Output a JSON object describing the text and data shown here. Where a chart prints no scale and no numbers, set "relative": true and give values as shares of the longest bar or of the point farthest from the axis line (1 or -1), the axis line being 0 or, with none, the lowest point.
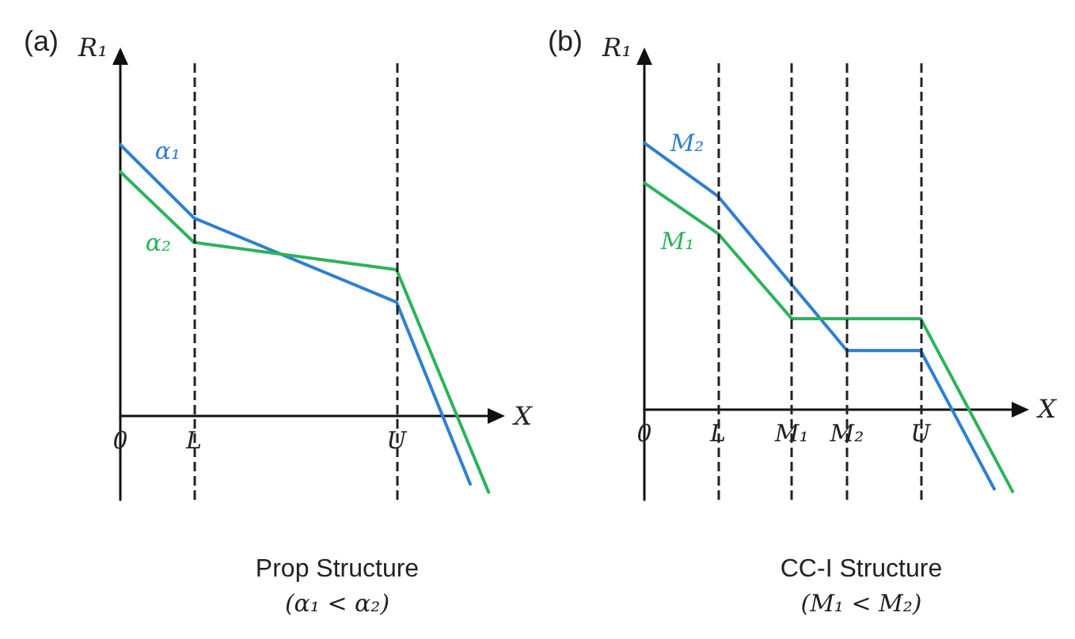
{
  "chart_data": [
    {
      "type": "line",
      "title": "(a)",
      "xlabel": "X",
      "ylabel": "R₁",
      "relative": true,
      "marker": "none",
      "grid": false,
      "legend": false,
      "categories": [
        "0",
        null,
        null,
        null,
        "L",
        null,
        null,
        null,
        null,
        null,
        null,
        null,
        null,
        null,
        null,
        "U",
        null,
        null,
        null,
        null,
        null
      ],
      "series": [
        {
          "name": "α₁",
          "color": "#2e7fd2",
          "values": [
            1,
            null,
            null,
            null,
            0.73,
            null,
            null,
            null,
            null,
            null,
            null,
            null,
            null,
            null,
            null,
            0.42,
            null,
            null,
            null,
            -0.25,
            null
          ]
        },
        {
          "name": "α₂",
          "color": "#2db35a",
          "values": [
            0.9,
            null,
            null,
            null,
            0.64,
            null,
            null,
            null,
            null,
            null,
            null,
            null,
            null,
            null,
            null,
            0.54,
            null,
            null,
            null,
            null,
            -0.28
          ]
        }
      ],
      "ref_lines": [
        {
          "axis": "x",
          "value": "L",
          "line_style": "dashed",
          "color": "#222222"
        },
        {
          "axis": "x",
          "value": "U",
          "line_style": "dashed",
          "color": "#222222"
        }
      ],
      "annotations": [
        "Prop Structure",
        "(α₁ < α₂)"
      ]
    },
    {
      "type": "line",
      "title": "(b)",
      "xlabel": "X",
      "ylabel": "R₁",
      "relative": true,
      "marker": "none",
      "grid": false,
      "legend": false,
      "categories": [
        "0",
        null,
        null,
        null,
        "L",
        null,
        null,
        null,
        "M₁",
        null,
        null,
        "M₂",
        null,
        null,
        null,
        "U",
        null,
        null,
        null,
        null,
        null
      ],
      "series": [
        {
          "name": "M₂",
          "color": "#2e7fd2",
          "values": [
            1,
            null,
            null,
            null,
            0.8,
            null,
            null,
            null,
            null,
            null,
            null,
            0.22,
            null,
            null,
            null,
            0.22,
            null,
            null,
            null,
            -0.3,
            null
          ]
        },
        {
          "name": "M₁",
          "color": "#2db35a",
          "values": [
            0.85,
            null,
            null,
            null,
            0.66,
            null,
            null,
            null,
            0.34,
            null,
            null,
            null,
            null,
            null,
            null,
            0.34,
            null,
            null,
            null,
            null,
            -0.31
          ]
        }
      ],
      "ref_lines": [
        {
          "axis": "x",
          "value": "L",
          "line_style": "dashed",
          "color": "#222222"
        },
        {
          "axis": "x",
          "value": "M₁",
          "line_style": "dashed",
          "color": "#222222"
        },
        {
          "axis": "x",
          "value": "M₂",
          "line_style": "dashed",
          "color": "#222222"
        },
        {
          "axis": "x",
          "value": "U",
          "line_style": "dashed",
          "color": "#222222"
        }
      ],
      "annotations": [
        "CC-I Structure",
        "(M₁ < M₂)"
      ]
    }
  ]
}
